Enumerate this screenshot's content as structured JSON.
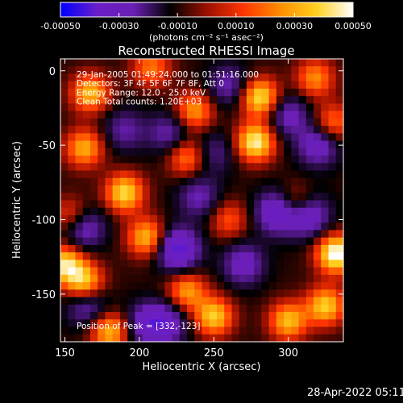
{
  "colorbar": {
    "ticks": [
      "-0.00050",
      "-0.00030",
      "-0.00010",
      "0.00010",
      "0.00030",
      "0.00050"
    ],
    "range": [
      -0.0005,
      0.0005
    ],
    "colormap": [
      "#0000ff",
      "#6a1ec8",
      "#6a1fb4",
      "#000000",
      "#9a1000",
      "#ff3500",
      "#ff8d00",
      "#ffd020",
      "#ffffff"
    ]
  },
  "units_label": "(photons cm⁻² s⁻¹ asec⁻²)",
  "footer": {
    "timestamp": "28-Apr-2022 05:11"
  },
  "chart_data": {
    "type": "heatmap",
    "title": "Reconstructed RHESSI Image",
    "xlabel": "Heliocentric X (arcsec)",
    "ylabel": "Heliocentric Y (arcsec)",
    "xlim": [
      147,
      337
    ],
    "ylim": [
      -182,
      8
    ],
    "xticks": [
      "150",
      "200",
      "250",
      "300"
    ],
    "yticks": [
      "0",
      "-50",
      "-100",
      "-150"
    ],
    "grid": false,
    "annotations": [
      "29-Jan-2005 01:49:24.000 to 01:51:16.000",
      "Detectors: 3F 4F 5F 6F 7F 8F, Att 0",
      "Energy Range: 12.0 - 25.0 keV",
      "Clean     Total counts: 1.20E+03"
    ],
    "peak_label": "Position of Peak = [332,-123]",
    "peaks": [
      {
        "x": 332,
        "y": -123,
        "amp": 1.0
      },
      {
        "x": 278,
        "y": -48,
        "amp": 0.9
      },
      {
        "x": 281,
        "y": -18,
        "amp": 0.85
      },
      {
        "x": 190,
        "y": -82,
        "amp": 0.8
      },
      {
        "x": 205,
        "y": -112,
        "amp": 0.7
      },
      {
        "x": 150,
        "y": -130,
        "amp": 0.8
      },
      {
        "x": 163,
        "y": -142,
        "amp": 0.75
      },
      {
        "x": 167,
        "y": -15,
        "amp": 0.7
      },
      {
        "x": 163,
        "y": -52,
        "amp": 0.65
      },
      {
        "x": 237,
        "y": -27,
        "amp": 0.6
      },
      {
        "x": 232,
        "y": -58,
        "amp": 0.55
      },
      {
        "x": 180,
        "y": -175,
        "amp": 0.7
      },
      {
        "x": 250,
        "y": -165,
        "amp": 0.75
      },
      {
        "x": 232,
        "y": -148,
        "amp": 0.6
      },
      {
        "x": 300,
        "y": -168,
        "amp": 0.7
      },
      {
        "x": 325,
        "y": -158,
        "amp": 0.75
      },
      {
        "x": 305,
        "y": -90,
        "amp": 0.55
      },
      {
        "x": 318,
        "y": -5,
        "amp": 0.55
      },
      {
        "x": 260,
        "y": -100,
        "amp": 0.4
      },
      {
        "x": 155,
        "y": -98,
        "amp": 0.5
      },
      {
        "x": 208,
        "y": 2,
        "amp": 0.5
      },
      {
        "x": 330,
        "y": -35,
        "amp": 0.5
      }
    ],
    "troughs": [
      {
        "x": 226,
        "y": -120,
        "amp": 0.9
      },
      {
        "x": 293,
        "y": -95,
        "amp": 0.8
      },
      {
        "x": 313,
        "y": -97,
        "amp": 0.75
      },
      {
        "x": 205,
        "y": -170,
        "amp": 0.55
      },
      {
        "x": 218,
        "y": -170,
        "amp": 0.55
      },
      {
        "x": 165,
        "y": -158,
        "amp": 0.5
      },
      {
        "x": 162,
        "y": -105,
        "amp": 0.65
      },
      {
        "x": 270,
        "y": -130,
        "amp": 0.55
      },
      {
        "x": 300,
        "y": -30,
        "amp": 0.5
      },
      {
        "x": 220,
        "y": -42,
        "amp": 0.45
      },
      {
        "x": 240,
        "y": -85,
        "amp": 0.45
      },
      {
        "x": 190,
        "y": -40,
        "amp": 0.4
      },
      {
        "x": 260,
        "y": -10,
        "amp": 0.45
      },
      {
        "x": 320,
        "y": -50,
        "amp": 0.6
      },
      {
        "x": 250,
        "y": -55,
        "amp": 0.35
      }
    ]
  }
}
